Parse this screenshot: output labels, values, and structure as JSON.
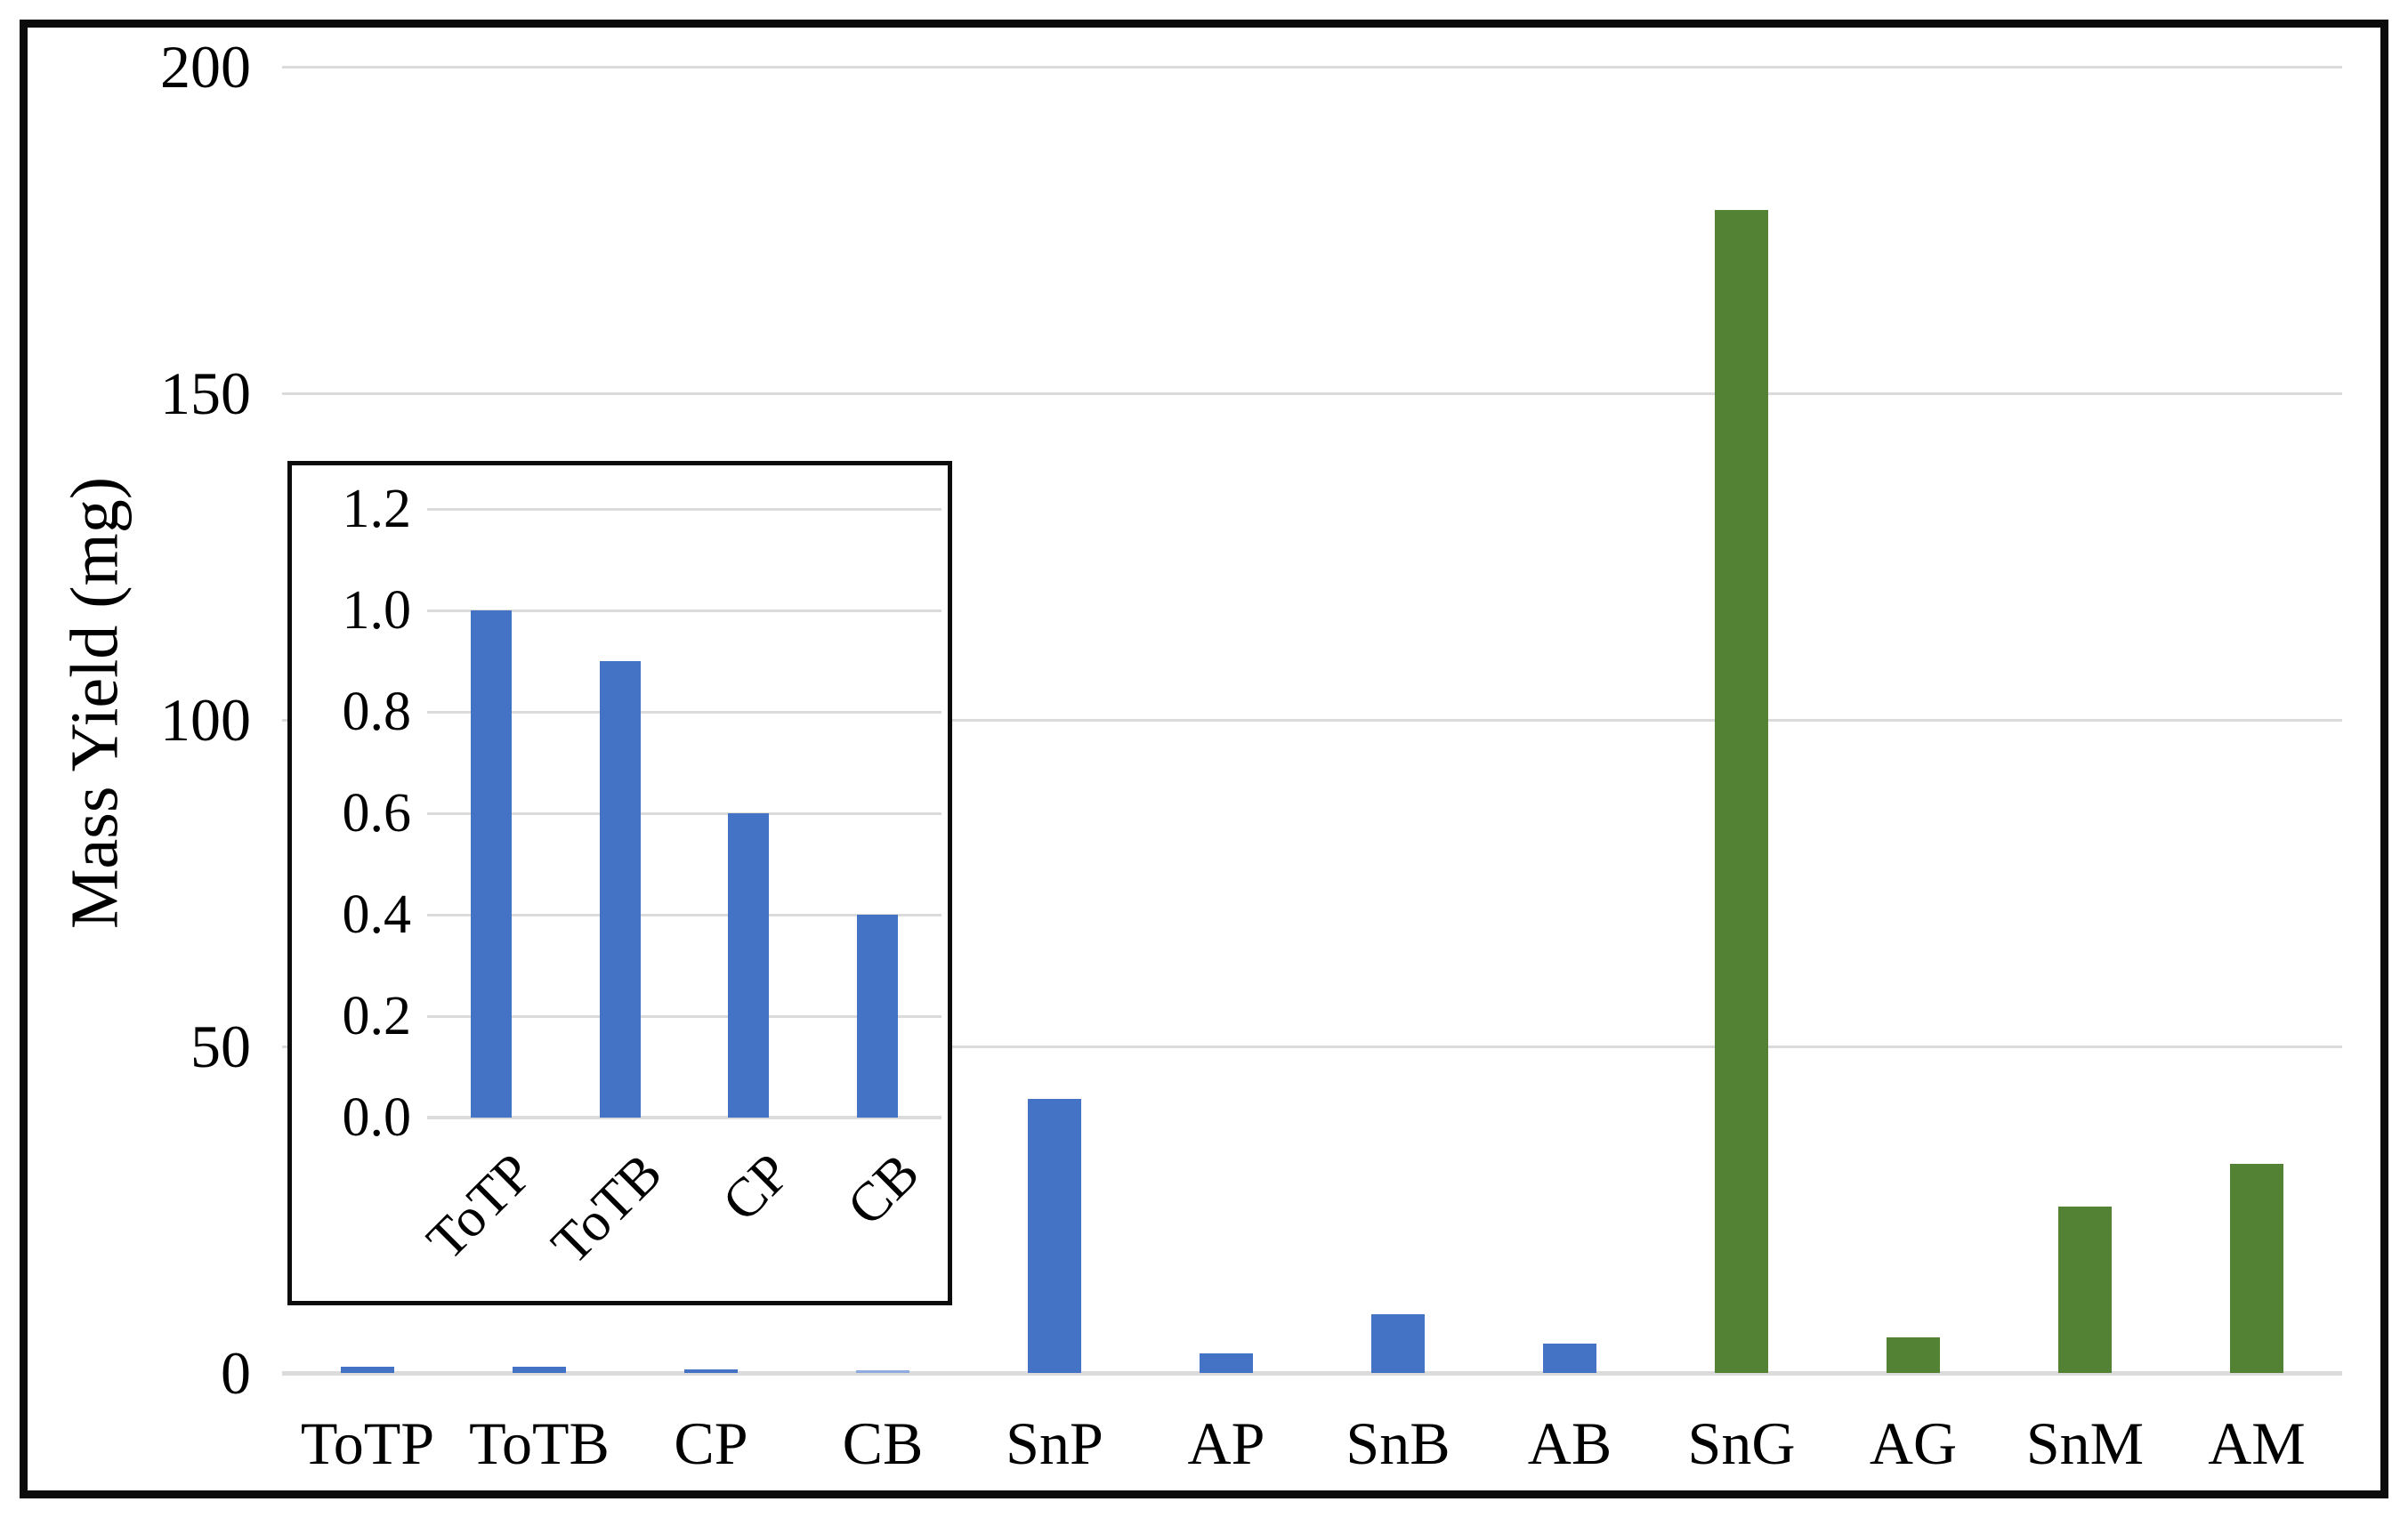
{
  "colors": {
    "bar_blue": "#4472C4",
    "bar_blue_light": "#8FAADC",
    "bar_green": "#548235",
    "gridline": "#DBDBDB",
    "frame_border": "#0B0B0B",
    "text": "#000000"
  },
  "chart_data": [
    {
      "id": "main",
      "type": "bar",
      "title": "",
      "xlabel": "",
      "ylabel": "Mass Yield (mg)",
      "categories": [
        "ToTP",
        "ToTB",
        "CP",
        "CB",
        "SnP",
        "AP",
        "SnB",
        "AB",
        "SnG",
        "AG",
        "SnM",
        "AM"
      ],
      "values": [
        1.0,
        0.9,
        0.6,
        0.4,
        42,
        3,
        9,
        4.5,
        178,
        5.5,
        25.5,
        32
      ],
      "bar_colors": [
        "#4472C4",
        "#4472C4",
        "#4472C4",
        "#8FAADC",
        "#4472C4",
        "#4472C4",
        "#4472C4",
        "#4472C4",
        "#548235",
        "#548235",
        "#548235",
        "#548235"
      ],
      "ylim": [
        0,
        200
      ],
      "ytick_labels": [
        "0",
        "50",
        "100",
        "150",
        "200"
      ],
      "grid": true,
      "legend_position": "none"
    },
    {
      "id": "inset",
      "type": "bar",
      "inset_of": "main",
      "title": "",
      "xlabel": "",
      "ylabel": "",
      "categories": [
        "ToTP",
        "ToTB",
        "CP",
        "CB"
      ],
      "values": [
        1.0,
        0.9,
        0.6,
        0.4
      ],
      "bar_colors": [
        "#4472C4",
        "#4472C4",
        "#4472C4",
        "#4472C4"
      ],
      "ylim": [
        0,
        1.2
      ],
      "ytick_labels": [
        "0.0",
        "0.2",
        "0.4",
        "0.6",
        "0.8",
        "1.0",
        "1.2"
      ],
      "grid": true,
      "legend_position": "none",
      "xtick_rotation": -45
    }
  ]
}
